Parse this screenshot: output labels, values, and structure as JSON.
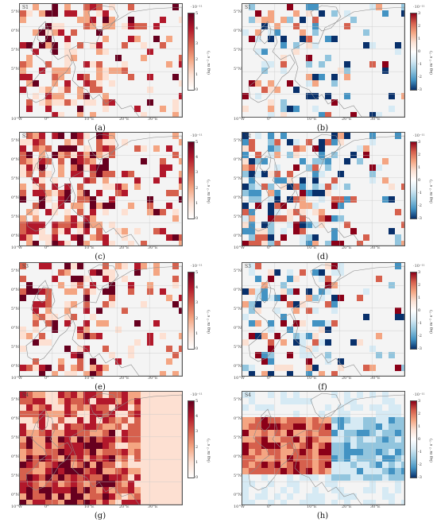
{
  "panels": [
    {
      "id": "a",
      "scenario": "S1",
      "caption": "(a)",
      "scale": "seq",
      "lat_labels": [
        "5°N",
        "0°N",
        "5°N",
        "5°N",
        ""
      ],
      "lon_labels": [
        "10°W",
        "0°",
        "10°E",
        "20°E",
        "30°E"
      ],
      "cbar_exp": "·10⁻¹¹",
      "cbar_ticks": [
        "5",
        "4",
        "3",
        "2",
        "1",
        "0"
      ],
      "cbar_unit": "(kg m⁻² s⁻¹)"
    },
    {
      "id": "b",
      "scenario": "S1",
      "caption": "(b)",
      "scale": "div",
      "lat_labels": [
        "5°N",
        "0°N",
        "5°N",
        "5°N",
        ""
      ],
      "lon_labels": [
        "10°W",
        "0°",
        "10°E",
        "20°E",
        "30°E"
      ],
      "cbar_exp": "·10⁻¹¹",
      "cbar_ticks": [
        "3",
        "2",
        "1",
        "0",
        "-1",
        "-2",
        "-3"
      ],
      "cbar_unit": "(kg m⁻² s⁻¹)"
    },
    {
      "id": "c",
      "scenario": "S2",
      "caption": "(c)",
      "scale": "seq",
      "lat_labels": [
        "5°N",
        "0°N",
        "5°N",
        "0°N",
        "5°N",
        "0°N"
      ],
      "lon_labels": [
        "10°W",
        "0°",
        "10°E",
        "20°E",
        "30°E"
      ],
      "cbar_exp": "·10⁻¹¹",
      "cbar_ticks": [
        "5",
        "4",
        "3",
        "2",
        "1",
        "0"
      ],
      "cbar_unit": "(kg m⁻² s⁻¹)"
    },
    {
      "id": "d",
      "scenario": "S2",
      "caption": "(d)",
      "scale": "div",
      "lat_labels": [
        "5°N",
        "0°N",
        "5°N",
        "0°N",
        "5°N",
        "0°N"
      ],
      "lon_labels": [
        "10°W",
        "0°",
        "10°E",
        "20°E",
        "30°E"
      ],
      "cbar_exp": "·10⁻¹¹",
      "cbar_ticks": [
        "3",
        "2",
        "1",
        "0",
        "-1",
        "-2",
        "-3"
      ],
      "cbar_unit": "(kg m⁻² s⁻¹)"
    },
    {
      "id": "e",
      "scenario": "S3",
      "caption": "(e)",
      "scale": "seq",
      "lat_labels": [
        "5°N",
        "0°N",
        "5°N",
        "0°N",
        "5°N",
        "0°N"
      ],
      "lon_labels": [
        "10°W",
        "0°",
        "10°E",
        "20°E",
        "30°E"
      ],
      "cbar_exp": "·10⁻¹¹",
      "cbar_ticks": [
        "5",
        "4",
        "3",
        "2",
        "1",
        "0"
      ],
      "cbar_unit": "(kg m⁻² s⁻¹)"
    },
    {
      "id": "f",
      "scenario": "S3",
      "caption": "(f)",
      "scale": "div",
      "lat_labels": [
        "5°N",
        "0°N",
        "5°N",
        "0°N",
        "5°N",
        "0°N"
      ],
      "lon_labels": [
        "10°W",
        "0°",
        "10°E",
        "20°E",
        "30°E"
      ],
      "cbar_exp": "·10⁻¹¹",
      "cbar_ticks": [
        "3",
        "2",
        "1",
        "0",
        "-1",
        "-2",
        "-3"
      ],
      "cbar_unit": "(kg m⁻² s⁻¹)"
    },
    {
      "id": "g",
      "scenario": "S4",
      "caption": "(g)",
      "scale": "seq",
      "lat_labels": [
        "5°N",
        "0°N",
        "5°N",
        "0°N",
        "5°N",
        "0°N"
      ],
      "lon_labels": [
        "10°W",
        "0°",
        "10°E",
        "20°E",
        "30°E"
      ],
      "cbar_exp": "·10⁻¹¹",
      "cbar_ticks": [
        "5",
        "4",
        "3",
        "2",
        "1",
        "0"
      ],
      "cbar_unit": "(kg m⁻² s⁻¹)"
    },
    {
      "id": "h",
      "scenario": "S4",
      "caption": "(h)",
      "scale": "div",
      "lat_labels": [
        "5°N",
        "0°N",
        "5°N",
        "0°N",
        "5°N",
        "0°N"
      ],
      "lon_labels": [
        "10°W",
        "0°",
        "10°E",
        "20°E",
        "30°E"
      ],
      "cbar_exp": "·10⁻¹¹",
      "cbar_ticks": [
        "3",
        "2",
        "1",
        "0",
        "-1",
        "-2",
        "-3"
      ],
      "cbar_unit": "(kg m⁻² s⁻¹)"
    }
  ],
  "colors": {
    "seq": [
      "#ffffff",
      "#fde0d2",
      "#f4a582",
      "#d6604d",
      "#b2182b",
      "#67001f"
    ],
    "div_pos": [
      "#fbe0d2",
      "#f4a582",
      "#d6604d",
      "#8b0018"
    ],
    "div_neg": [
      "#d6eaf4",
      "#92c5de",
      "#4393c3",
      "#08306b"
    ],
    "land": "#f4f4f4",
    "border": "#8a8a8a"
  }
}
